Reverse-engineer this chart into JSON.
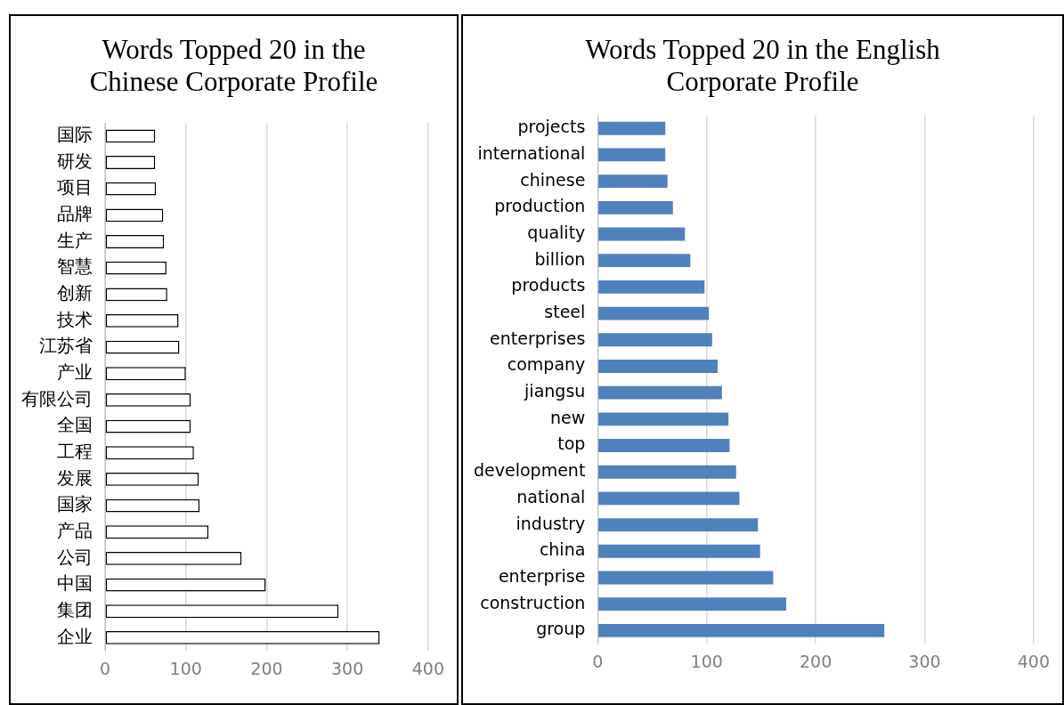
{
  "chart_data": [
    {
      "type": "bar",
      "orientation": "horizontal",
      "title": "Words Topped 20 in the Chinese Corporate Profile",
      "categories": [
        "国际",
        "研发",
        "项目",
        "品牌",
        "生产",
        "智慧",
        "创新",
        "技术",
        "江苏省",
        "产业",
        "有限公司",
        "全国",
        "工程",
        "发展",
        "国家",
        "产品",
        "公司",
        "中国",
        "集团",
        "企业"
      ],
      "values": [
        62,
        62,
        63,
        72,
        73,
        76,
        77,
        91,
        92,
        100,
        106,
        106,
        110,
        116,
        117,
        128,
        169,
        199,
        289,
        340
      ],
      "color": "#ffffff",
      "xlim": [
        0,
        400
      ],
      "xticks": [
        0,
        100,
        200,
        300,
        400
      ],
      "grid": "x",
      "legend": false
    },
    {
      "type": "bar",
      "orientation": "horizontal",
      "title": "Words Topped 20 in the English Corporate Profile",
      "categories": [
        "projects",
        "international",
        "chinese",
        "production",
        "quality",
        "billion",
        "products",
        "steel",
        "enterprises",
        "company",
        "jiangsu",
        "new",
        "top",
        "development",
        "national",
        "industry",
        "china",
        "enterprise",
        "construction",
        "group"
      ],
      "values": [
        62,
        62,
        64,
        69,
        80,
        85,
        98,
        102,
        105,
        110,
        114,
        120,
        121,
        127,
        130,
        147,
        149,
        161,
        173,
        263
      ],
      "color": "#4f81bd",
      "xlim": [
        0,
        400
      ],
      "xticks": [
        0,
        100,
        200,
        300,
        400
      ],
      "grid": "x",
      "legend": false
    }
  ]
}
